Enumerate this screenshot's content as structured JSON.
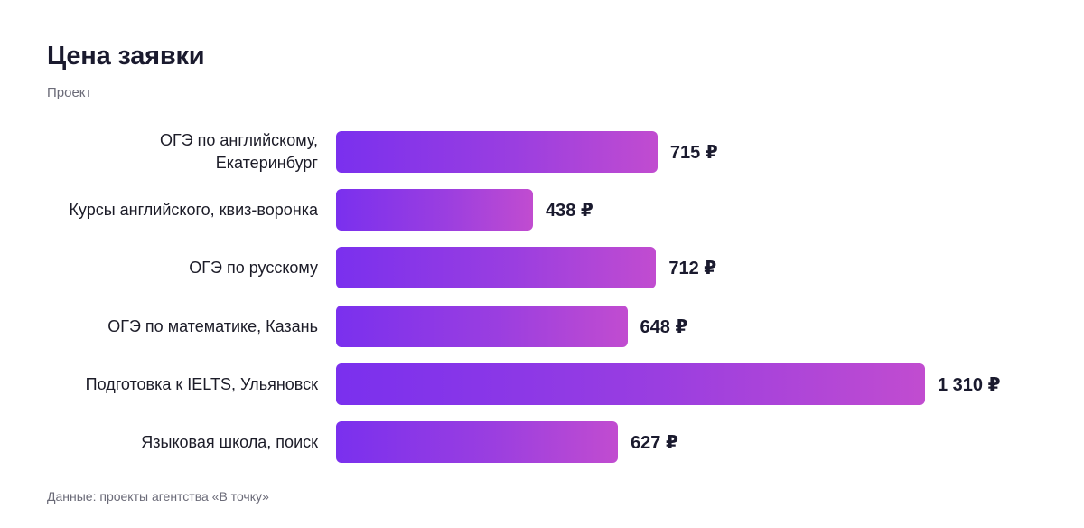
{
  "title": "Цена заявки",
  "subtitle": "Проект",
  "footnote": "Данные: проекты агентства «В точку»",
  "chart_data": {
    "type": "bar",
    "orientation": "horizontal",
    "title": "Цена заявки",
    "categories": [
      "ОГЭ по английскому,\nЕкатеринбург",
      "Курсы английского, квиз-воронка",
      "ОГЭ по русскому",
      "ОГЭ по математике, Казань",
      "Подготовка к IELTS, Ульяновск",
      "Языковая школа, поиск"
    ],
    "values": [
      715,
      438,
      712,
      648,
      1310,
      627
    ],
    "value_labels": [
      "715 ₽",
      "438 ₽",
      "712 ₽",
      "648 ₽",
      "1 310 ₽",
      "627 ₽"
    ],
    "unit": "₽",
    "colors": {
      "bar_start": "#7a30ee",
      "bar_end": "#c14cd0"
    },
    "grid": false,
    "legend": "none"
  }
}
